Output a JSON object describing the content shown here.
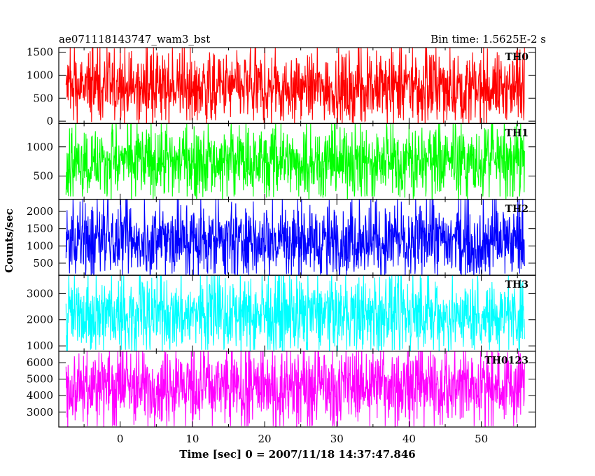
{
  "header": {
    "title": "ae071118143747_wam3_bst",
    "bin_time": "Bin time: 1.5625E-2 s"
  },
  "chart_data": {
    "type": "line",
    "xlabel": "Time [sec] 0 = 2007/11/18 14:37:47.846",
    "ylabel": "Counts/sec",
    "xlim": [
      -8.5,
      57.5
    ],
    "x_ticks": [
      "0",
      "10",
      "20",
      "30",
      "40",
      "50"
    ],
    "x_tick_values": [
      0,
      10,
      20,
      30,
      40,
      50
    ],
    "data_x_range": [
      -7.5,
      56.0
    ],
    "bin_time_s": 0.015625,
    "grid": false,
    "panels": [
      {
        "name": "TH0",
        "color": "#ff0000",
        "ylim": [
          -50,
          1600
        ],
        "y_ticks": [
          0,
          500,
          1000,
          1500
        ],
        "y_tick_labels": [
          "0",
          "500",
          "1000",
          "1500"
        ],
        "mean": 720,
        "min": 20,
        "max": 1600
      },
      {
        "name": "TH1",
        "color": "#00ff00",
        "ylim": [
          100,
          1400
        ],
        "y_ticks": [
          500,
          1000
        ],
        "y_tick_labels": [
          "500",
          "1000"
        ],
        "mean": 750,
        "min": 150,
        "max": 1400
      },
      {
        "name": "TH2",
        "color": "#0000ff",
        "ylim": [
          150,
          2350
        ],
        "y_ticks": [
          500,
          1000,
          1500,
          2000
        ],
        "y_tick_labels": [
          "500",
          "1000",
          "1500",
          "2000"
        ],
        "mean": 1150,
        "min": 200,
        "max": 2350
      },
      {
        "name": "TH3",
        "color": "#00ffff",
        "ylim": [
          800,
          3700
        ],
        "y_ticks": [
          1000,
          2000,
          3000
        ],
        "y_tick_labels": [
          "1000",
          "2000",
          "3000"
        ],
        "mean": 2200,
        "min": 850,
        "max": 3700
      },
      {
        "name": "TH0123",
        "color": "#ff00ff",
        "ylim": [
          2100,
          6700
        ],
        "y_ticks": [
          3000,
          4000,
          5000,
          6000
        ],
        "y_tick_labels": [
          "3000",
          "4000",
          "5000",
          "6000"
        ],
        "mean": 4600,
        "min": 2150,
        "max": 6700
      }
    ]
  }
}
